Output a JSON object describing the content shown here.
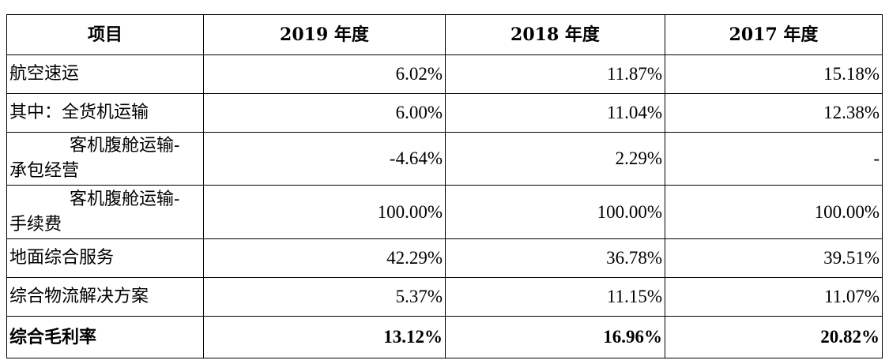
{
  "table": {
    "headers": [
      "项目",
      "2019 年度",
      "2018 年度",
      "2017 年度"
    ],
    "rows": [
      {
        "label": "航空速运",
        "values": [
          "6.02%",
          "11.87%",
          "15.18%"
        ]
      },
      {
        "label": "其中：全货机运输",
        "values": [
          "6.00%",
          "11.04%",
          "12.38%"
        ]
      },
      {
        "label_line1": "客机腹舱运输-",
        "label_line2": "承包经营",
        "values": [
          "-4.64%",
          "2.29%",
          "-"
        ]
      },
      {
        "label_line1": "客机腹舱运输-",
        "label_line2": "手续费",
        "values": [
          "100.00%",
          "100.00%",
          "100.00%"
        ]
      },
      {
        "label": "地面综合服务",
        "values": [
          "42.29%",
          "36.78%",
          "39.51%"
        ]
      },
      {
        "label": "综合物流解决方案",
        "values": [
          "5.37%",
          "11.15%",
          "11.07%"
        ]
      },
      {
        "label": "综合毛利率",
        "values": [
          "13.12%",
          "16.96%",
          "20.82%"
        ]
      }
    ]
  }
}
